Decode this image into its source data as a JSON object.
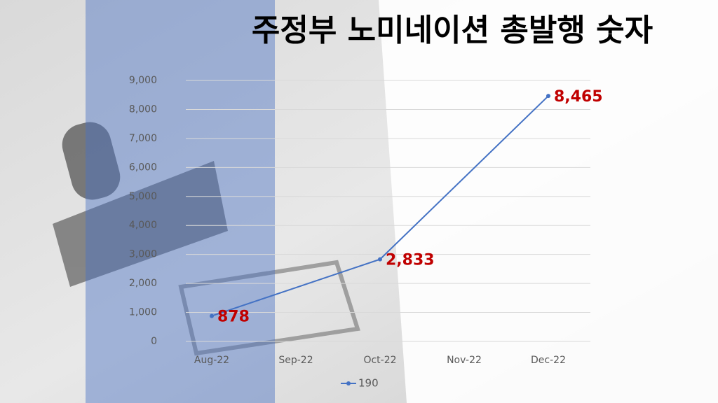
{
  "chart_data": {
    "type": "line",
    "title": "주정부 노미네이션 총발행 숫자",
    "categories": [
      "Aug-22",
      "Sep-22",
      "Oct-22",
      "Nov-22",
      "Dec-22"
    ],
    "series": [
      {
        "name": "190",
        "color": "#4472c4",
        "x": [
          "Aug-22",
          "Oct-22",
          "Dec-22"
        ],
        "values": [
          878,
          2833,
          8465
        ],
        "value_labels": [
          "878",
          "2,833",
          "8,465"
        ],
        "label_color": "#c00000"
      }
    ],
    "ylim": [
      0,
      9000
    ],
    "yticks": [
      0,
      {
        "value": 1000,
        "label": "1,000"
      },
      {
        "value": 2000,
        "label": "2,000"
      },
      {
        "value": 3000,
        "label": "3,000"
      },
      {
        "value": 4000,
        "label": "4,000"
      },
      {
        "value": 5000,
        "label": "5,000"
      },
      {
        "value": 6000,
        "label": "6,000"
      },
      {
        "value": 7000,
        "label": "7,000"
      },
      {
        "value": 8000,
        "label": "8,000"
      },
      {
        "value": 9000,
        "label": "9,000"
      }
    ],
    "grid": true,
    "legend": "bottom"
  }
}
